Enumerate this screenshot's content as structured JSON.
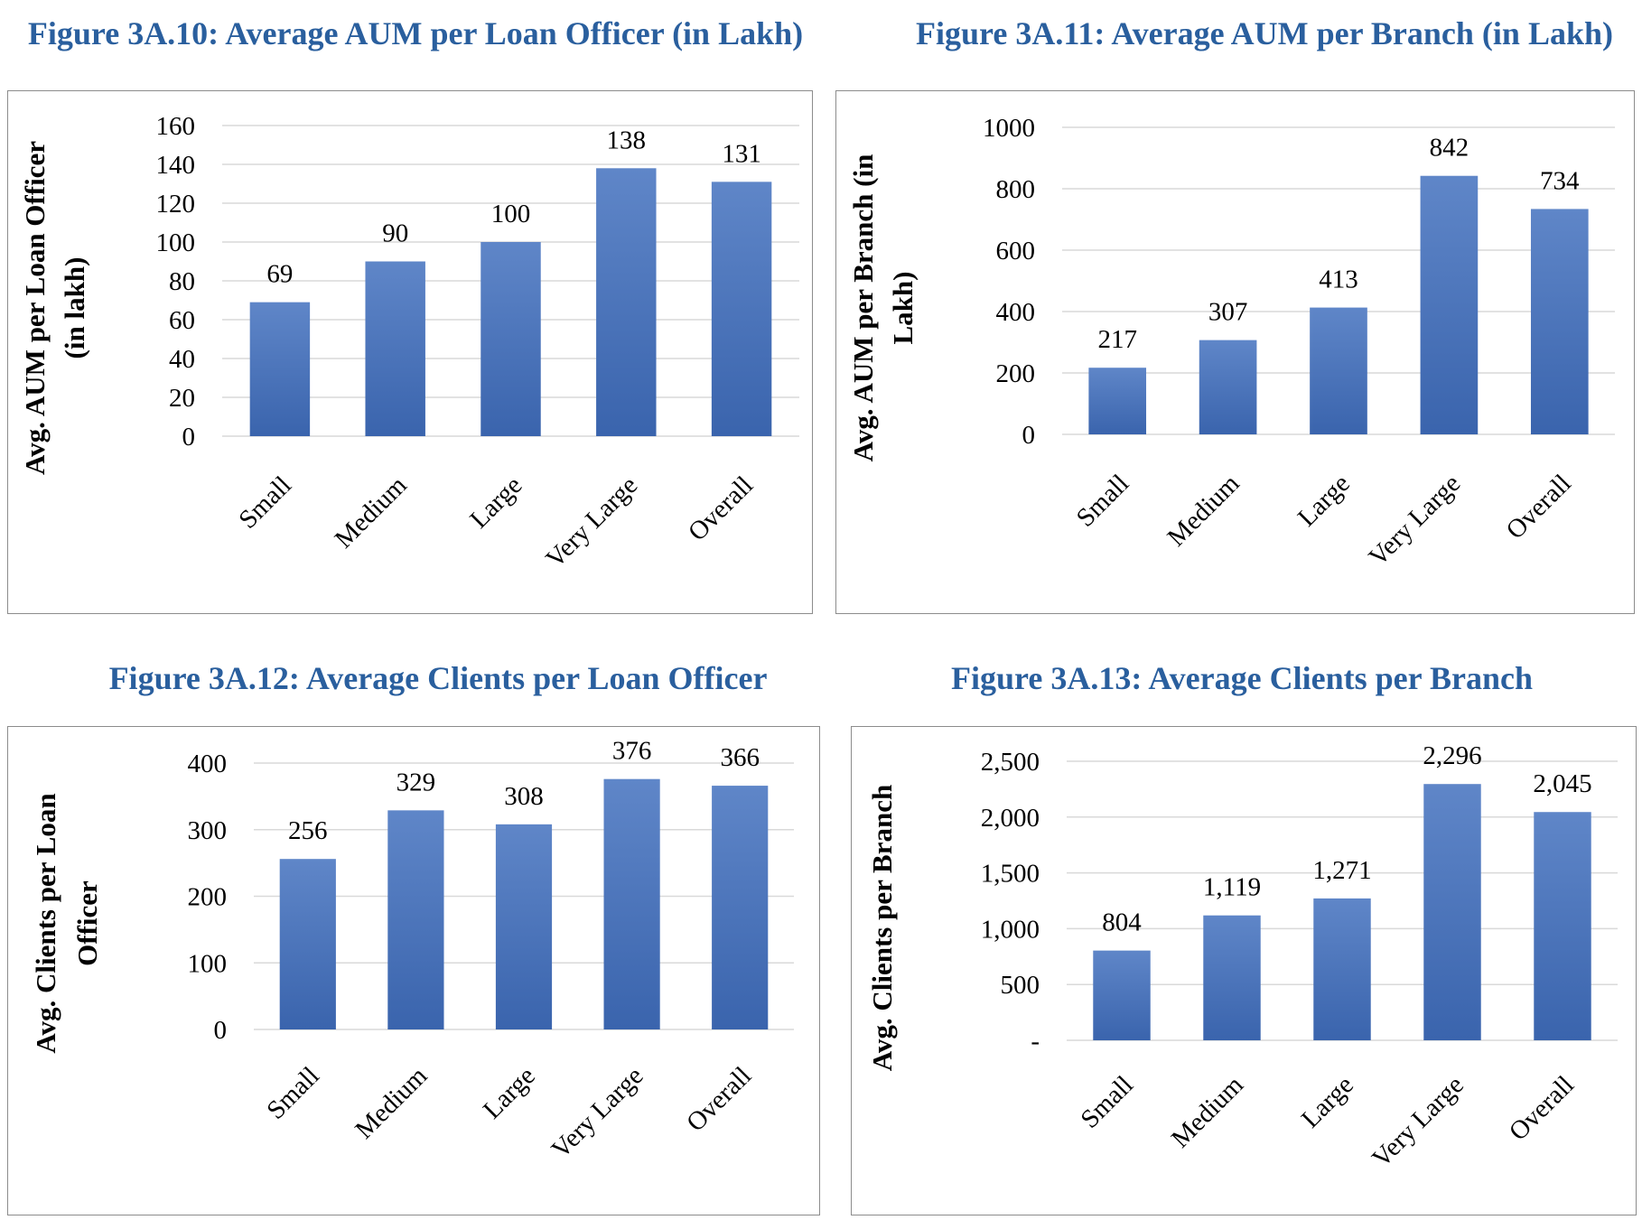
{
  "colors": {
    "title": "#2a5f9e",
    "bar_top": "#5f86c8",
    "bar_bottom": "#3a64ad",
    "grid": "#d9d9d9"
  },
  "figures": [
    {
      "title": "Figure 3A.10: Average AUM per Loan Officer (in Lakh)"
    },
    {
      "title": "Figure 3A.11: Average AUM per Branch (in Lakh)"
    },
    {
      "title": "Figure 3A.12: Average Clients per Loan Officer"
    },
    {
      "title": "Figure 3A.13: Average Clients per Branch"
    }
  ],
  "chart_data": [
    {
      "type": "bar",
      "title": "Figure 3A.10: Average AUM per Loan Officer (in Lakh)",
      "categories": [
        "Small",
        "Medium",
        "Large",
        "Very Large",
        "Overall"
      ],
      "values": [
        69,
        90,
        100,
        138,
        131
      ],
      "value_labels": [
        "69",
        "90",
        "100",
        "138",
        "131"
      ],
      "ylabel_lines": [
        "Avg. AUM per Loan Officer",
        "(in lakh)"
      ],
      "ylim": [
        0,
        160
      ],
      "yticks": [
        0,
        20,
        40,
        60,
        80,
        100,
        120,
        140,
        160
      ],
      "ytick_labels": [
        "0",
        "20",
        "40",
        "60",
        "80",
        "100",
        "120",
        "140",
        "160"
      ],
      "grid": true
    },
    {
      "type": "bar",
      "title": "Figure 3A.11: Average AUM per Branch (in Lakh)",
      "categories": [
        "Small",
        "Medium",
        "Large",
        "Very Large",
        "Overall"
      ],
      "values": [
        217,
        307,
        413,
        842,
        734
      ],
      "value_labels": [
        "217",
        "307",
        "413",
        "842",
        "734"
      ],
      "ylabel_lines": [
        "Avg. AUM per Branch (in",
        "Lakh)"
      ],
      "ylim": [
        0,
        1000
      ],
      "yticks": [
        0,
        200,
        400,
        600,
        800,
        1000
      ],
      "ytick_labels": [
        "0",
        "200",
        "400",
        "600",
        "800",
        "1000"
      ],
      "grid": true
    },
    {
      "type": "bar",
      "title": "Figure 3A.12: Average Clients per Loan Officer",
      "categories": [
        "Small",
        "Medium",
        "Large",
        "Very Large",
        "Overall"
      ],
      "values": [
        256,
        329,
        308,
        376,
        366
      ],
      "value_labels": [
        "256",
        "329",
        "308",
        "376",
        "366"
      ],
      "ylabel_lines": [
        "Avg. Clients per Loan",
        "Officer"
      ],
      "ylim": [
        0,
        400
      ],
      "yticks": [
        0,
        100,
        200,
        300,
        400
      ],
      "ytick_labels": [
        "0",
        "100",
        "200",
        "300",
        "400"
      ],
      "grid": true
    },
    {
      "type": "bar",
      "title": "Figure 3A.13: Average Clients per Branch",
      "categories": [
        "Small",
        "Medium",
        "Large",
        "Very Large",
        "Overall"
      ],
      "values": [
        804,
        1119,
        1271,
        2296,
        2045
      ],
      "value_labels": [
        "804",
        "1,119",
        "1,271",
        "2,296",
        "2,045"
      ],
      "ylabel_lines": [
        "Avg. Clients per Branch"
      ],
      "ylim": [
        0,
        2500
      ],
      "yticks": [
        0,
        500,
        1000,
        1500,
        2000,
        2500
      ],
      "ytick_labels": [
        "-",
        "500",
        "1,000",
        "1,500",
        "2,000",
        "2,500"
      ],
      "grid": true
    }
  ]
}
